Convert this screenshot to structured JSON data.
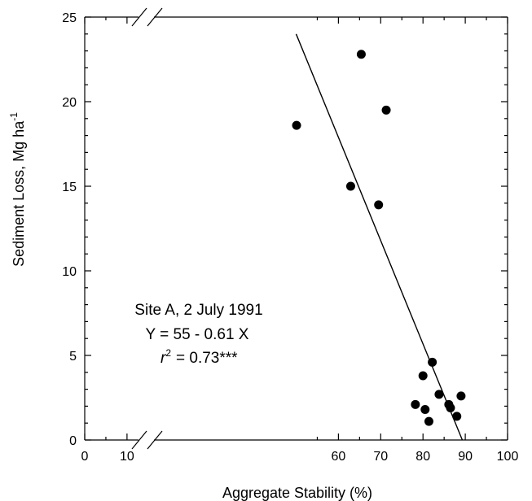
{
  "chart_data": {
    "type": "scatter",
    "xlabel": "Aggregate Stability (%)",
    "ylabel": {
      "main": "Sediment Loss, Mg ha",
      "superscript": "-1"
    },
    "xlim": [
      0,
      100
    ],
    "ylim": [
      0,
      25
    ],
    "x_ticks": [
      "0",
      "10",
      "60",
      "70",
      "80",
      "90",
      "100"
    ],
    "x_tick_values": [
      0,
      10,
      60,
      70,
      80,
      90,
      100
    ],
    "x_ticks_plotted_at": [
      0,
      10,
      60,
      70,
      80,
      90,
      100
    ],
    "y_ticks": [
      "0",
      "5",
      "10",
      "15",
      "20",
      "25"
    ],
    "y_tick_values": [
      0,
      5,
      10,
      15,
      20,
      25
    ],
    "grid": false,
    "axis_breaks": [
      "x-axis between 10 and 50",
      "top edge"
    ],
    "points": [
      {
        "x": 50.1,
        "y": 18.6
      },
      {
        "x": 62.9,
        "y": 15.0
      },
      {
        "x": 65.4,
        "y": 22.8
      },
      {
        "x": 69.5,
        "y": 13.9
      },
      {
        "x": 71.3,
        "y": 19.5
      },
      {
        "x": 78.2,
        "y": 2.1
      },
      {
        "x": 80.0,
        "y": 3.8
      },
      {
        "x": 80.5,
        "y": 1.8
      },
      {
        "x": 81.4,
        "y": 1.1
      },
      {
        "x": 82.2,
        "y": 4.6
      },
      {
        "x": 83.8,
        "y": 2.7
      },
      {
        "x": 86.1,
        "y": 2.1
      },
      {
        "x": 86.5,
        "y": 1.9
      },
      {
        "x": 88.0,
        "y": 1.4
      },
      {
        "x": 89.0,
        "y": 2.6
      }
    ],
    "fit_line": {
      "x": [
        50,
        89.3
      ],
      "y": [
        24.0,
        0.0
      ]
    },
    "annotations": {
      "line1": "Site A,  2 July 1991",
      "line2": "Y = 55 - 0.61 X",
      "r_symbol": "r",
      "r_exponent": "2",
      "r_value": "=  0.73***"
    }
  }
}
